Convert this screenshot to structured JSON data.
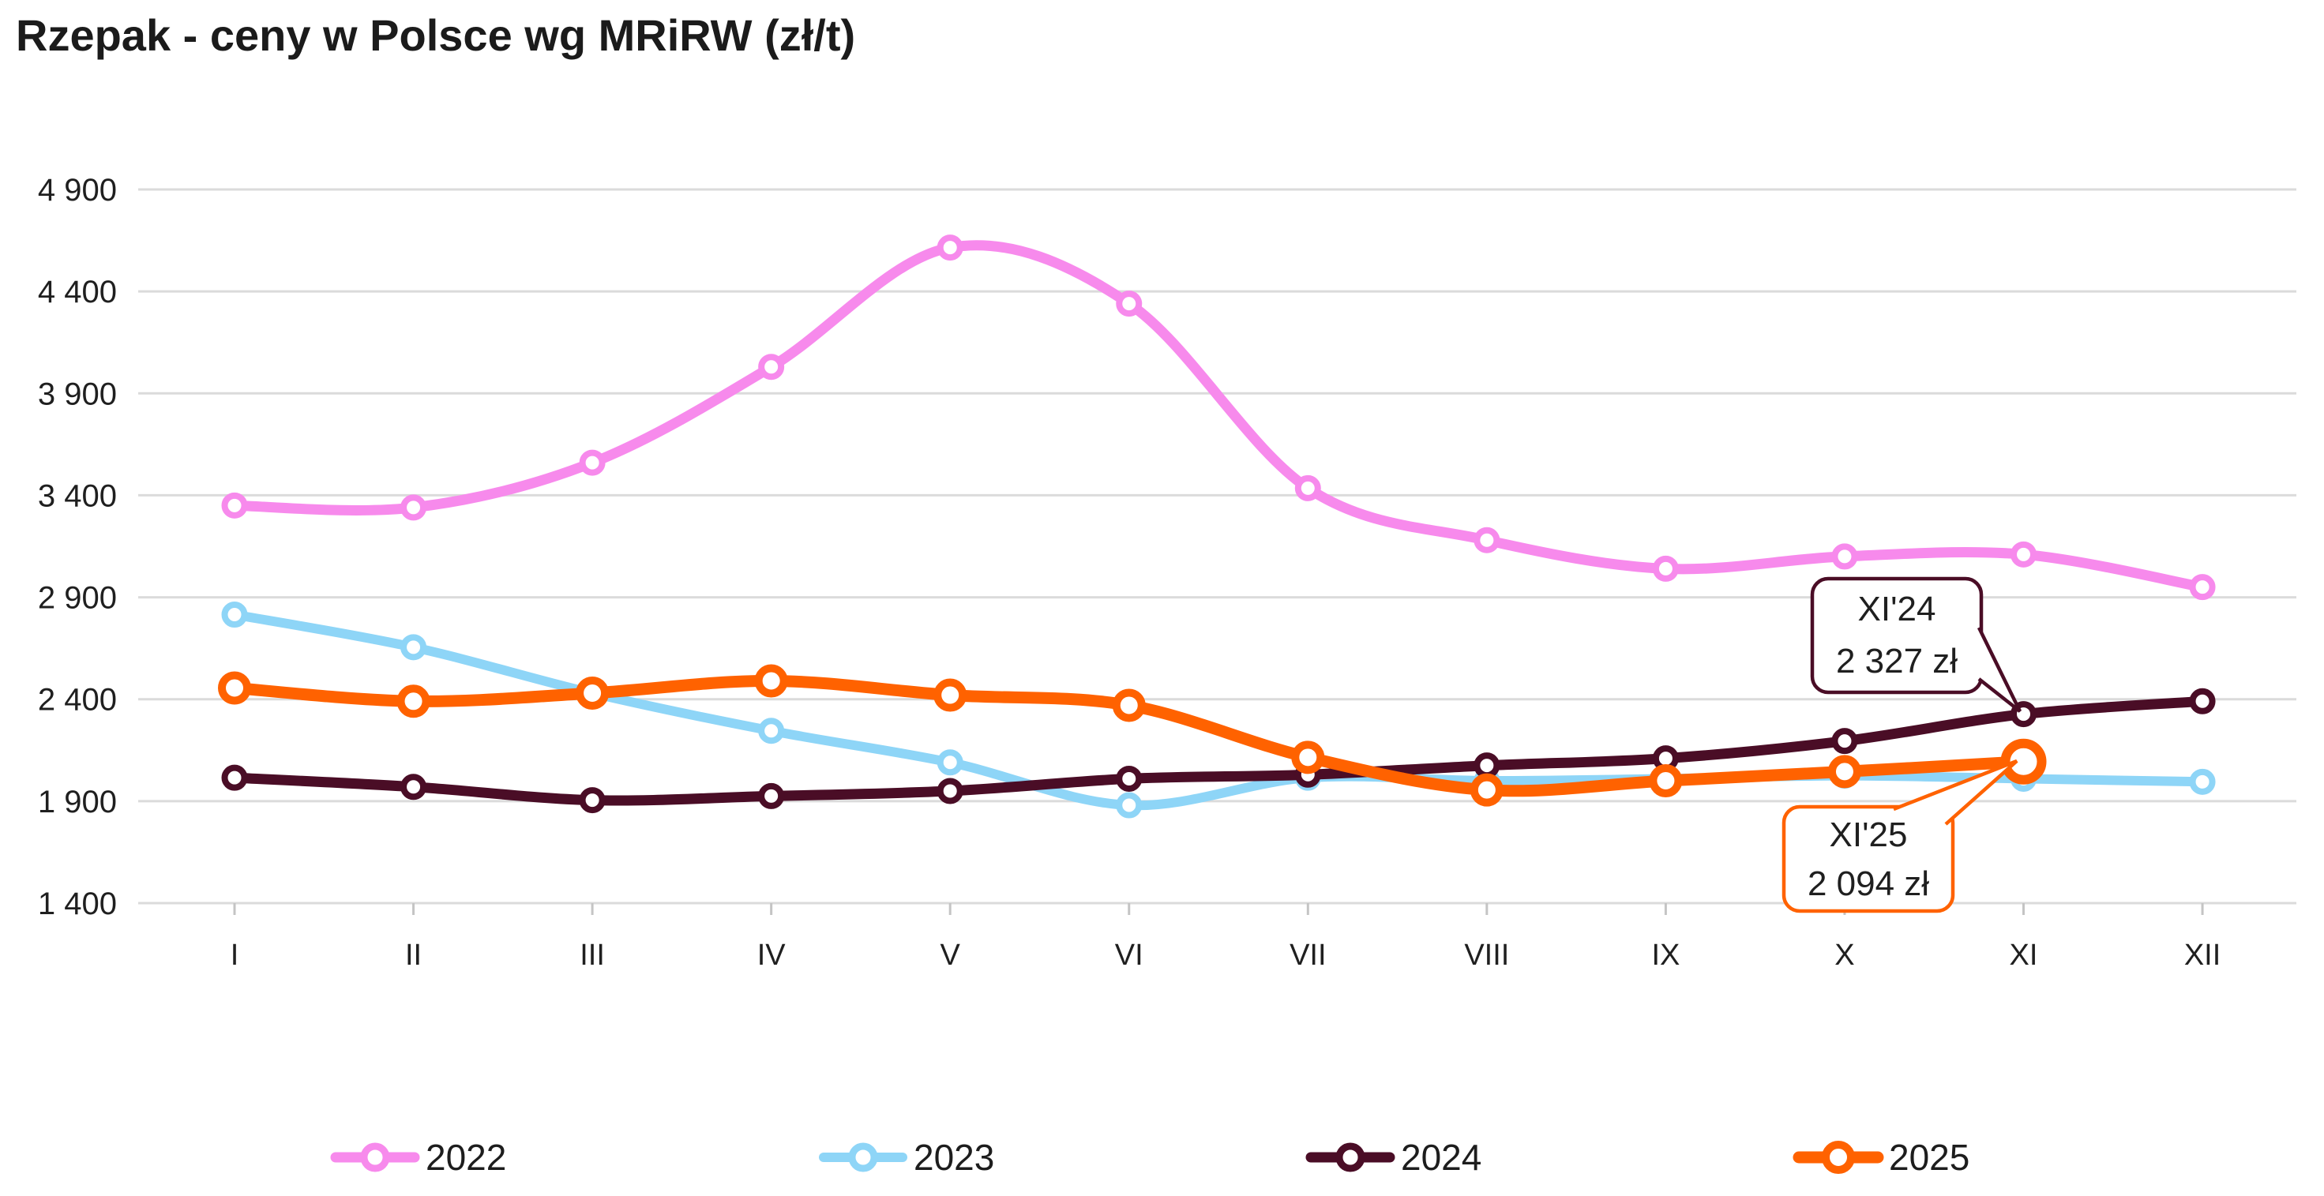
{
  "title": "Rzepak - ceny w Polsce wg MRiRW (zł/t)",
  "colors": {
    "background": "#ffffff",
    "grid": "#dbdbdb",
    "axis_text": "#1f1f1f",
    "title_text": "#1b1b1b"
  },
  "chart_data": {
    "type": "line",
    "title": "Rzepak - ceny w Polsce wg MRiRW (zł/t)",
    "x_labels": [
      "I",
      "II",
      "III",
      "IV",
      "V",
      "VI",
      "VII",
      "VIII",
      "IX",
      "X",
      "XI",
      "XII"
    ],
    "y_axis": {
      "min": 1400,
      "max": 4900,
      "step": 500,
      "tick_labels": [
        "1 400",
        "1 900",
        "2 400",
        "2 900",
        "3 400",
        "3 900",
        "4 400",
        "4 900"
      ]
    },
    "grid": true,
    "legend_position": "bottom",
    "series": [
      {
        "name": "2022",
        "color": "#f78aec",
        "values": [
          3350,
          3340,
          3560,
          4030,
          4615,
          4340,
          3435,
          3180,
          3040,
          3100,
          3110,
          2950
        ]
      },
      {
        "name": "2023",
        "color": "#8ed5f7",
        "values": [
          2815,
          2655,
          2430,
          2245,
          2090,
          1880,
          2015,
          2000,
          2010,
          2025,
          2010,
          1995
        ]
      },
      {
        "name": "2024",
        "color": "#4a0d26",
        "values": [
          2015,
          1970,
          1905,
          1925,
          1950,
          2010,
          2030,
          2075,
          2110,
          2195,
          2327,
          2390
        ]
      },
      {
        "name": "2025",
        "color": "#ff6200",
        "values": [
          2455,
          2390,
          2430,
          2490,
          2420,
          2370,
          2115,
          1955,
          2000,
          2045,
          2094
        ]
      }
    ],
    "annotations": [
      {
        "series": "2024",
        "month": "XI",
        "line1": "XI'24",
        "line2": "2 327 zł",
        "value": 2327
      },
      {
        "series": "2025",
        "month": "XI",
        "line1": "XI'25",
        "line2": "2 094 zł",
        "value": 2094
      }
    ]
  }
}
